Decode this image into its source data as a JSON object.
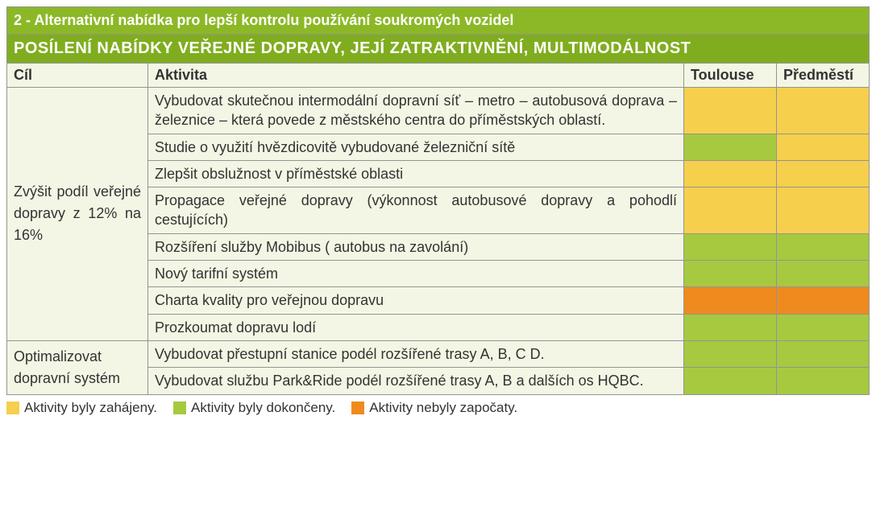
{
  "colors": {
    "header_green": "#8cb827",
    "subheader_green": "#80ad1f",
    "cell_bg": "#f3f6e4",
    "border": "#949494",
    "status": {
      "started": "#f6cf4c",
      "done": "#a6c940",
      "notstarted": "#ef8a1e"
    }
  },
  "title": "2 - Alternativní nabídka pro lepší kontrolu používání soukromých vozidel",
  "subtitle": "POSÍLENÍ NABÍDKY VEŘEJNÉ DOPRAVY, JEJÍ ZATRAKTIVNĚNÍ, MULTIMODÁLNOST",
  "columns": {
    "goal": "Cíl",
    "activity": "Aktivita",
    "toulouse": "Toulouse",
    "suburb": "Předměstí"
  },
  "groups": [
    {
      "goal": "Zvýšit podíl veřejné dopravy z 12% na 16%",
      "rows": [
        {
          "activity": "Vybudovat skutečnou intermodální dopravní síť – metro – auto­busová doprava – železnice – která povede z městského centra do příměstských oblastí.",
          "t": "started",
          "p": "started"
        },
        {
          "activity": "Studie o využití hvězdicovitě vybudované železniční sítě",
          "t": "done",
          "p": "started"
        },
        {
          "activity": "Zlepšit obslužnost v příměstské oblasti",
          "t": "started",
          "p": "started"
        },
        {
          "activity": "Propagace veřejné dopravy (výkonnost autobusové dopravy a pohodlí cestujících)",
          "t": "started",
          "p": "started"
        },
        {
          "activity": "Rozšíření služby Mobibus ( autobus na zavolání)",
          "t": "done",
          "p": "done"
        },
        {
          "activity": "Nový tarifní systém",
          "t": "done",
          "p": "done"
        },
        {
          "activity": "Charta kvality pro veřejnou dopravu",
          "t": "notstarted",
          "p": "notstarted"
        },
        {
          "activity": "Prozkoumat dopravu lodí",
          "t": "done",
          "p": "done"
        }
      ]
    },
    {
      "goal": "Optimalizovat dopravní systém",
      "rows": [
        {
          "activity": "Vybudovat přestupní stanice podél rozšířené trasy A, B, C D.",
          "t": "done",
          "p": "done"
        },
        {
          "activity": "Vybudovat službu Park&Ride podél rozšířené  trasy A, B a dalších os HQBC.",
          "t": "done",
          "p": "done"
        }
      ]
    }
  ],
  "legend": [
    {
      "key": "started",
      "label": "Aktivity byly zahájeny."
    },
    {
      "key": "done",
      "label": "Aktivity byly dokončeny."
    },
    {
      "key": "notstarted",
      "label": "Aktivity nebyly započaty."
    }
  ]
}
